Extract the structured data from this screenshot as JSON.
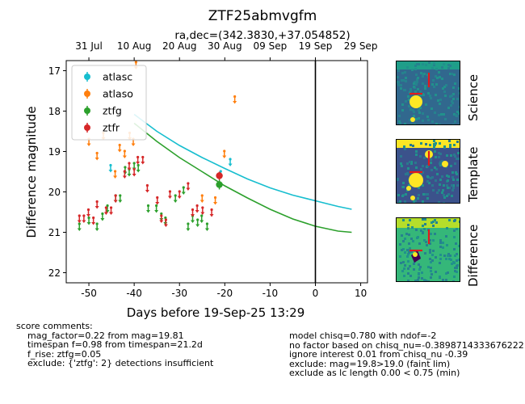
{
  "chart_data": {
    "type": "scatter",
    "title": "ZTF25abmvgfm",
    "subtitle": "ra,dec=(342.3830,+37.054852)",
    "xlabel": "Days before 19-Sep-25 13:29",
    "ylabel": "Difference magnitude",
    "xlim": [
      -55,
      11.5
    ],
    "ylim": [
      22.25,
      16.75
    ],
    "y_inverted": true,
    "x_ticks": [
      -50,
      -40,
      -30,
      -20,
      -10,
      0,
      10
    ],
    "y_ticks": [
      17,
      18,
      19,
      20,
      21,
      22
    ],
    "top_axis_ticks": [
      {
        "x": -50,
        "label": "31 Jul"
      },
      {
        "x": -40,
        "label": "10 Aug"
      },
      {
        "x": -30,
        "label": "20 Aug"
      },
      {
        "x": -20,
        "label": "30 Aug"
      },
      {
        "x": -10,
        "label": "09 Sep"
      },
      {
        "x": 0,
        "label": "19 Sep"
      },
      {
        "x": 10,
        "label": "29 Sep"
      }
    ],
    "legend": {
      "placement": "upper-left",
      "entries": [
        "atlasc",
        "atlaso",
        "ztfg",
        "ztfr"
      ]
    },
    "colors": {
      "atlasc": "#17becf",
      "atlaso": "#ff7f0e",
      "ztfg": "#2ca02c",
      "ztfr": "#d62728"
    },
    "vertical_line_x": 0,
    "series": [
      {
        "name": "atlasc",
        "upper_limits": [
          [
            -45.2,
            19.4
          ],
          [
            -18.8,
            19.25
          ],
          [
            -20.9,
            19.55
          ]
        ],
        "detections": [],
        "model": [
          [
            -40,
            18.08
          ],
          [
            -35,
            18.5
          ],
          [
            -30,
            18.85
          ],
          [
            -25,
            19.15
          ],
          [
            -20,
            19.42
          ],
          [
            -15,
            19.68
          ],
          [
            -10,
            19.9
          ],
          [
            -5,
            20.08
          ],
          [
            0,
            20.22
          ],
          [
            5,
            20.36
          ],
          [
            8,
            20.43
          ]
        ]
      },
      {
        "name": "atlaso",
        "upper_limits": [
          [
            -50,
            18.75
          ],
          [
            -48.2,
            19.1
          ],
          [
            -46.8,
            18.6
          ],
          [
            -44.2,
            19.55
          ],
          [
            -43.2,
            18.9
          ],
          [
            -42.1,
            19.05
          ],
          [
            -41,
            18.6
          ],
          [
            -40.2,
            18.75
          ],
          [
            -39.6,
            16.85
          ],
          [
            -25,
            20.15
          ],
          [
            -22.1,
            20.2
          ],
          [
            -20.1,
            19.05
          ],
          [
            -17.8,
            17.7
          ]
        ],
        "detections": []
      },
      {
        "name": "ztfg",
        "upper_limits": [
          [
            -52.1,
            20.85
          ],
          [
            -50,
            20.7
          ],
          [
            -48.2,
            20.85
          ],
          [
            -47,
            20.6
          ],
          [
            -45.9,
            20.4
          ],
          [
            -44.1,
            20.15
          ],
          [
            -43.1,
            20.15
          ],
          [
            -42,
            19.45
          ],
          [
            -41.1,
            19.5
          ],
          [
            -40,
            19.35
          ],
          [
            -39.1,
            19.4
          ],
          [
            -36.9,
            20.4
          ],
          [
            -35.1,
            20.4
          ],
          [
            -34,
            20.6
          ],
          [
            -33.1,
            20.7
          ],
          [
            -30.9,
            20.15
          ],
          [
            -29.1,
            19.95
          ],
          [
            -28.1,
            20.85
          ],
          [
            -27.1,
            20.65
          ],
          [
            -26,
            20.75
          ],
          [
            -25.1,
            20.65
          ],
          [
            -23.9,
            20.85
          ]
        ],
        "detections": [
          [
            -21.2,
            19.82,
            0.12
          ]
        ],
        "model": [
          [
            -40,
            18.3
          ],
          [
            -35,
            18.75
          ],
          [
            -30,
            19.15
          ],
          [
            -25,
            19.5
          ],
          [
            -20,
            19.85
          ],
          [
            -15,
            20.15
          ],
          [
            -10,
            20.43
          ],
          [
            -5,
            20.67
          ],
          [
            0,
            20.85
          ],
          [
            5,
            20.97
          ],
          [
            8,
            21.0
          ]
        ]
      },
      {
        "name": "ztfr",
        "upper_limits": [
          [
            -52.1,
            20.65
          ],
          [
            -51.1,
            20.65
          ],
          [
            -50.1,
            20.5
          ],
          [
            -49,
            20.7
          ],
          [
            -48.2,
            20.3
          ],
          [
            -46.2,
            20.45
          ],
          [
            -45.1,
            20.45
          ],
          [
            -44.1,
            20.15
          ],
          [
            -42.1,
            19.55
          ],
          [
            -41.1,
            19.35
          ],
          [
            -40,
            19.5
          ],
          [
            -39.2,
            19.2
          ],
          [
            -38.1,
            19.2
          ],
          [
            -37.1,
            19.9
          ],
          [
            -34.9,
            20.2
          ],
          [
            -34,
            20.65
          ],
          [
            -33,
            20.75
          ],
          [
            -32.1,
            20.05
          ],
          [
            -30,
            20.05
          ],
          [
            -28.1,
            19.85
          ],
          [
            -27.1,
            20.5
          ],
          [
            -26.1,
            20.4
          ],
          [
            -24.9,
            20.45
          ],
          [
            -22.9,
            20.5
          ]
        ],
        "detections": [
          [
            -21.2,
            19.6,
            0.1
          ]
        ]
      }
    ]
  },
  "stamps": {
    "labels": [
      "Science",
      "Template",
      "Difference"
    ],
    "colors": {
      "background": "#3b528b",
      "noise": "#21918c",
      "bright": "#fde725",
      "mid": "#5ec962",
      "dark": "#440154"
    }
  },
  "comments_left": {
    "heading": "score comments:",
    "lines": [
      "mag_factor=0.22 from mag=19.81",
      "timespan f=0.98 from timespan=21.2d",
      "f_rise: ztfg=0.05",
      "exclude: {'ztfg': 2} detections insufficient"
    ]
  },
  "comments_right": {
    "lines": [
      "model chisq=0.780 with ndof=-2",
      "no factor based on chisq_nu=-0.3898714333676222",
      "ignore interest 0.01 from chisq_nu -0.39",
      "exclude: mag=19.8>19.0 (faint lim)",
      "exclude as lc length 0.00 < 0.75 (min)"
    ]
  }
}
